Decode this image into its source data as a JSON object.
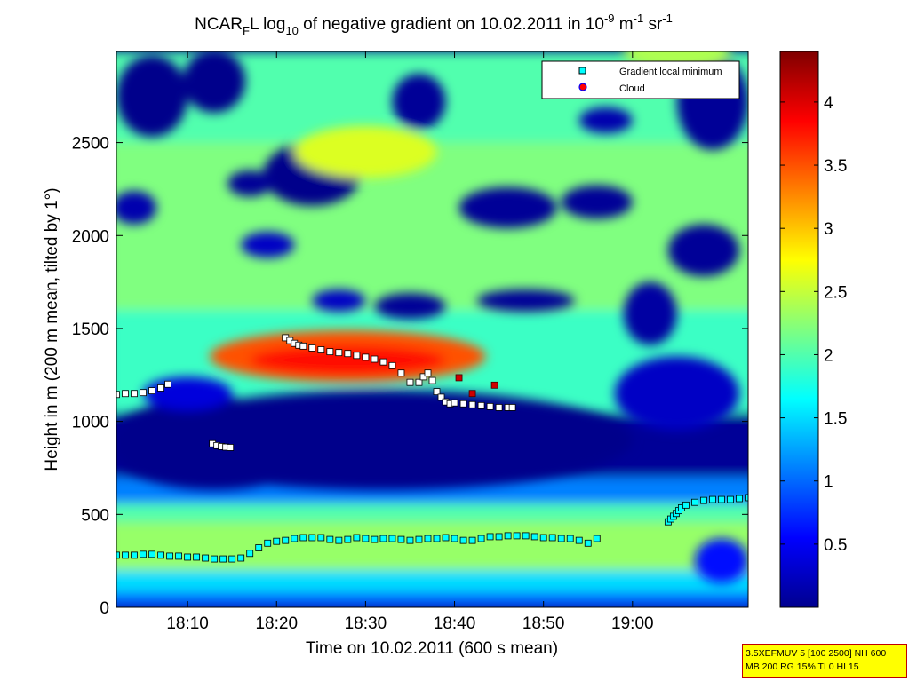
{
  "chart_data": {
    "type": "heatmap",
    "title": {
      "base": "NCAR",
      "base_sub": "F",
      "mid": "L log",
      "mid_sub": "10",
      "rest": " of negative gradient on 10.02.2011 in 10",
      "exp1": "-9",
      "unit1": " m",
      "exp2": "-1",
      "unit2": " sr",
      "exp3": "-1"
    },
    "xlabel": "Time on 10.02.2011 (600 s mean)",
    "ylabel": "Height in m (200 m mean, tilted by 1°)",
    "x_range_min": [
      1082,
      1153
    ],
    "y_range_m": [
      0,
      2990
    ],
    "x_ticks": [
      {
        "min": 1090,
        "label": "18:10"
      },
      {
        "min": 1100,
        "label": "18:20"
      },
      {
        "min": 1110,
        "label": "18:30"
      },
      {
        "min": 1120,
        "label": "18:40"
      },
      {
        "min": 1130,
        "label": "18:50"
      },
      {
        "min": 1140,
        "label": "19:00"
      }
    ],
    "y_ticks": [
      0,
      500,
      1000,
      1500,
      2000,
      2500
    ],
    "colorbar": {
      "range": [
        0,
        4.4
      ],
      "ticks": [
        0.5,
        1,
        1.5,
        2,
        2.5,
        3,
        3.5,
        4
      ],
      "colormap": "jet"
    },
    "legend": {
      "position": "top-right",
      "entries": [
        {
          "label": "Gradient local minimum",
          "marker": "square",
          "color": "#00ffff"
        },
        {
          "label": "Cloud",
          "marker": "circle",
          "color": "#ff0000"
        }
      ]
    },
    "regions": [
      {
        "kind": "bands",
        "x0": 1082,
        "x1": 1153,
        "values": [
          {
            "y0": 0,
            "y1": 80,
            "v": 1.0
          },
          {
            "y0": 80,
            "y1": 200,
            "v": 1.5
          },
          {
            "y0": 200,
            "y1": 460,
            "v": 2.3
          },
          {
            "y0": 460,
            "y1": 560,
            "v": 2.0
          },
          {
            "y0": 560,
            "y1": 700,
            "v": 1.1
          },
          {
            "y0": 700,
            "y1": 1050,
            "v": 0.1
          },
          {
            "y0": 1050,
            "y1": 1600,
            "v": 1.9
          },
          {
            "y0": 1600,
            "y1": 2500,
            "v": 2.2
          },
          {
            "y0": 2500,
            "y1": 2990,
            "v": 2.0
          }
        ]
      },
      {
        "kind": "ellipse",
        "cx": 1108,
        "cy": 1350,
        "rx": 15.5,
        "ry": 140,
        "v": 3.5
      },
      {
        "kind": "ellipse",
        "cx": 1108,
        "cy": 1330,
        "rx": 11,
        "ry": 80,
        "v": 3.8
      },
      {
        "kind": "ellipse",
        "cx": 1112,
        "cy": 900,
        "rx": 28,
        "ry": 270,
        "v": 0.05
      },
      {
        "kind": "ellipse",
        "cx": 1093,
        "cy": 880,
        "rx": 12,
        "ry": 250,
        "v": 0.05
      },
      {
        "kind": "ellipse",
        "cx": 1086,
        "cy": 2750,
        "rx": 4,
        "ry": 220,
        "v": 0.05
      },
      {
        "kind": "ellipse",
        "cx": 1093,
        "cy": 2830,
        "rx": 3.5,
        "ry": 170,
        "v": 0.05
      },
      {
        "kind": "ellipse",
        "cx": 1104,
        "cy": 2330,
        "rx": 5.5,
        "ry": 170,
        "v": 0.05
      },
      {
        "kind": "ellipse",
        "cx": 1097,
        "cy": 2280,
        "rx": 2.5,
        "ry": 70,
        "v": 0.1
      },
      {
        "kind": "ellipse",
        "cx": 1126,
        "cy": 2150,
        "rx": 5.5,
        "ry": 110,
        "v": 0.1
      },
      {
        "kind": "ellipse",
        "cx": 1136,
        "cy": 2180,
        "rx": 4,
        "ry": 90,
        "v": 0.1
      },
      {
        "kind": "ellipse",
        "cx": 1128,
        "cy": 1650,
        "rx": 5.5,
        "ry": 60,
        "v": 0.1
      },
      {
        "kind": "ellipse",
        "cx": 1115,
        "cy": 1620,
        "rx": 4,
        "ry": 70,
        "v": 0.1
      },
      {
        "kind": "ellipse",
        "cx": 1137,
        "cy": 2620,
        "rx": 3,
        "ry": 70,
        "v": 0.2
      },
      {
        "kind": "ellipse",
        "cx": 1116,
        "cy": 2720,
        "rx": 3,
        "ry": 150,
        "v": 0.1
      },
      {
        "kind": "ellipse",
        "cx": 1148,
        "cy": 1920,
        "rx": 4,
        "ry": 140,
        "v": 0.1
      },
      {
        "kind": "ellipse",
        "cx": 1142,
        "cy": 1580,
        "rx": 3,
        "ry": 170,
        "v": 0.15
      },
      {
        "kind": "ellipse",
        "cx": 1149,
        "cy": 2720,
        "rx": 4,
        "ry": 260,
        "v": 0.1
      },
      {
        "kind": "ellipse",
        "cx": 1084,
        "cy": 2150,
        "rx": 2.5,
        "ry": 90,
        "v": 0.2
      },
      {
        "kind": "ellipse",
        "cx": 1099,
        "cy": 1950,
        "rx": 3,
        "ry": 70,
        "v": 0.3
      },
      {
        "kind": "ellipse",
        "cx": 1107,
        "cy": 1650,
        "rx": 3,
        "ry": 60,
        "v": 0.3
      },
      {
        "kind": "ellipse",
        "cx": 1145,
        "cy": 1150,
        "rx": 7,
        "ry": 200,
        "v": 0.3
      },
      {
        "kind": "ellipse",
        "cx": 1150,
        "cy": 250,
        "rx": 3,
        "ry": 120,
        "v": 0.6
      },
      {
        "kind": "ellipse",
        "cx": 1145,
        "cy": 2980,
        "rx": 6,
        "ry": 90,
        "v": 2.4
      },
      {
        "kind": "ellipse",
        "cx": 1110,
        "cy": 2450,
        "rx": 8,
        "ry": 140,
        "v": 2.6
      },
      {
        "kind": "ellipse",
        "cx": 1090,
        "cy": 1150,
        "rx": 5,
        "ry": 90,
        "v": 0.4
      }
    ],
    "series": [
      {
        "name": "Gradient local minimum (lower)",
        "x": [
          1082,
          1083,
          1084,
          1085,
          1086,
          1087,
          1088,
          1089,
          1090,
          1091,
          1092,
          1093,
          1094,
          1095,
          1096,
          1097,
          1098,
          1099,
          1100,
          1101,
          1102,
          1103,
          1104,
          1105,
          1106,
          1107,
          1108,
          1109,
          1110,
          1111,
          1112,
          1113,
          1114,
          1115,
          1116,
          1117,
          1118,
          1119,
          1120,
          1121,
          1122,
          1123,
          1124,
          1125,
          1126,
          1127,
          1128,
          1129,
          1130,
          1131,
          1132,
          1133,
          1134,
          1135,
          1136
        ],
        "y": [
          280,
          280,
          280,
          285,
          285,
          280,
          275,
          275,
          270,
          270,
          265,
          260,
          260,
          260,
          265,
          290,
          320,
          345,
          355,
          360,
          370,
          375,
          375,
          375,
          365,
          360,
          365,
          375,
          370,
          365,
          370,
          370,
          365,
          360,
          365,
          370,
          370,
          375,
          370,
          360,
          360,
          370,
          380,
          380,
          385,
          385,
          385,
          380,
          375,
          375,
          370,
          370,
          360,
          345,
          370
        ]
      },
      {
        "name": "Gradient local minimum (rising)",
        "x": [
          1144.0,
          1144.3,
          1144.6,
          1144.9,
          1145.2,
          1145.5,
          1146,
          1147,
          1148,
          1149,
          1150,
          1151,
          1152,
          1153
        ],
        "y": [
          460,
          475,
          490,
          505,
          520,
          535,
          550,
          565,
          575,
          580,
          580,
          580,
          585,
          590
        ]
      },
      {
        "name": "Gradient local minimum (upper-left)",
        "x": [
          1082,
          1083,
          1084,
          1085,
          1086,
          1087,
          1087.8
        ],
        "y": [
          1145,
          1150,
          1150,
          1155,
          1165,
          1180,
          1200
        ]
      },
      {
        "name": "Gradient local minimum (small)",
        "x": [
          1092.8,
          1093.3,
          1093.8,
          1094.3,
          1094.8
        ],
        "y": [
          880,
          870,
          865,
          862,
          860
        ]
      },
      {
        "name": "Gradient local minimum (main upper)",
        "x": [
          1101.0,
          1101.5,
          1102,
          1102.5,
          1103,
          1104,
          1105,
          1106,
          1107,
          1108,
          1109,
          1110,
          1111,
          1112,
          1113,
          1114,
          1115,
          1116,
          1116.5,
          1117,
          1117.5,
          1118,
          1118.5,
          1119,
          1119.5,
          1120,
          1121,
          1122,
          1123,
          1124,
          1125,
          1126,
          1126.5
        ],
        "y": [
          1450,
          1435,
          1420,
          1410,
          1405,
          1395,
          1385,
          1375,
          1370,
          1365,
          1355,
          1345,
          1335,
          1320,
          1300,
          1260,
          1210,
          1210,
          1240,
          1260,
          1220,
          1160,
          1130,
          1105,
          1095,
          1100,
          1095,
          1090,
          1085,
          1080,
          1075,
          1075,
          1075
        ]
      }
    ],
    "cloud_points": {
      "name": "Cloud",
      "x": [
        1120.5,
        1122,
        1124.5
      ],
      "y": [
        1235,
        1150,
        1195
      ]
    }
  },
  "info_box": {
    "line1": "3.5XEFMUV 5 [100 2500] NH 600",
    "line2": "MB 200 RG 15% TI 0 HI 15"
  }
}
